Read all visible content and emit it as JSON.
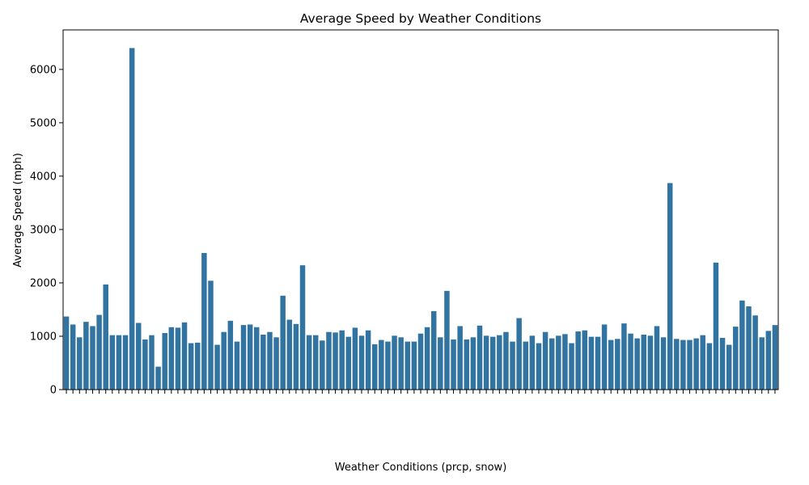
{
  "chart_data": {
    "type": "bar",
    "title": "Average Speed by Weather Conditions",
    "xlabel": "Weather Conditions (prcp, snow)",
    "ylabel": "Average Speed (mph)",
    "color": "#3274a1",
    "categories": [
      null,
      null,
      null,
      null,
      null,
      null,
      null,
      null,
      null,
      null,
      null,
      null,
      null,
      null,
      null,
      null,
      null,
      null,
      null,
      null,
      null,
      null,
      null,
      null,
      null,
      null,
      null,
      null,
      null,
      null,
      null,
      null,
      null,
      null,
      null,
      null,
      null,
      null,
      null,
      null,
      null,
      null,
      null,
      null,
      null,
      null,
      null,
      null,
      null,
      null,
      null,
      null,
      null,
      null,
      null,
      null,
      null,
      null,
      null,
      null,
      null,
      null,
      null,
      null,
      null,
      null,
      null,
      null,
      null,
      null,
      null,
      null,
      null,
      null,
      null,
      null,
      null,
      null,
      null,
      null,
      null,
      null,
      null,
      null,
      null,
      null,
      null,
      null,
      null,
      null,
      null,
      null,
      null,
      null,
      null,
      null,
      null,
      null,
      null,
      null,
      null,
      null,
      null,
      null,
      null,
      null,
      null,
      null,
      null
    ],
    "values": [
      1370,
      1220,
      980,
      1270,
      1190,
      1400,
      1970,
      1020,
      1020,
      1020,
      6400,
      1250,
      940,
      1020,
      430,
      1060,
      1170,
      1160,
      1260,
      870,
      880,
      2560,
      2040,
      840,
      1080,
      1290,
      900,
      1210,
      1220,
      1170,
      1030,
      1080,
      980,
      1760,
      1310,
      1230,
      2330,
      1020,
      1020,
      920,
      1080,
      1070,
      1110,
      990,
      1160,
      1010,
      1110,
      850,
      930,
      900,
      1010,
      980,
      900,
      900,
      1050,
      1170,
      1470,
      980,
      1850,
      940,
      1190,
      940,
      980,
      1200,
      1010,
      990,
      1020,
      1080,
      900,
      1340,
      900,
      1010,
      870,
      1080,
      960,
      1010,
      1040,
      870,
      1090,
      1110,
      990,
      990,
      1220,
      930,
      950,
      1240,
      1050,
      960,
      1030,
      1010,
      1190,
      980,
      3870,
      950,
      930,
      930,
      960,
      1020,
      870,
      2380,
      970,
      840,
      1180,
      1670,
      1560,
      1390,
      980,
      1100,
      1210
    ],
    "ylim": [
      0,
      6740
    ],
    "yticks": [
      0,
      1000,
      2000,
      3000,
      4000,
      5000,
      6000
    ]
  }
}
